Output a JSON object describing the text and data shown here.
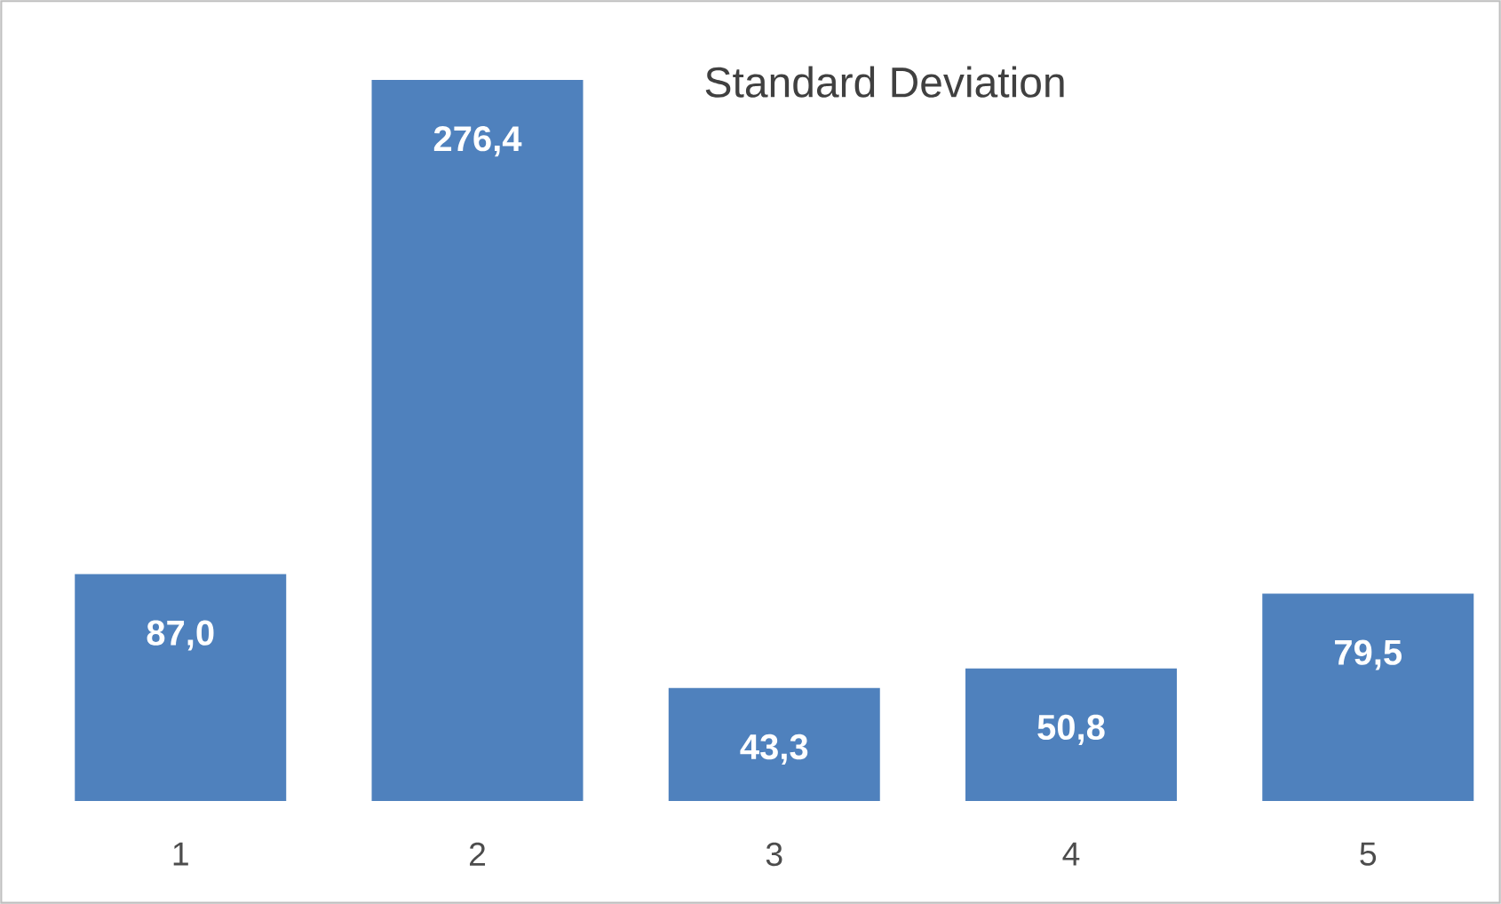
{
  "chart_data": {
    "type": "bar",
    "title": "Standard Deviation",
    "categories": [
      "1",
      "2",
      "3",
      "4",
      "5"
    ],
    "values": [
      87.0,
      276.4,
      43.3,
      50.8,
      79.5
    ],
    "value_labels": [
      "87,0",
      "276,4",
      "43,3",
      "50,8",
      "79,5"
    ],
    "color": "#4f81bd"
  }
}
